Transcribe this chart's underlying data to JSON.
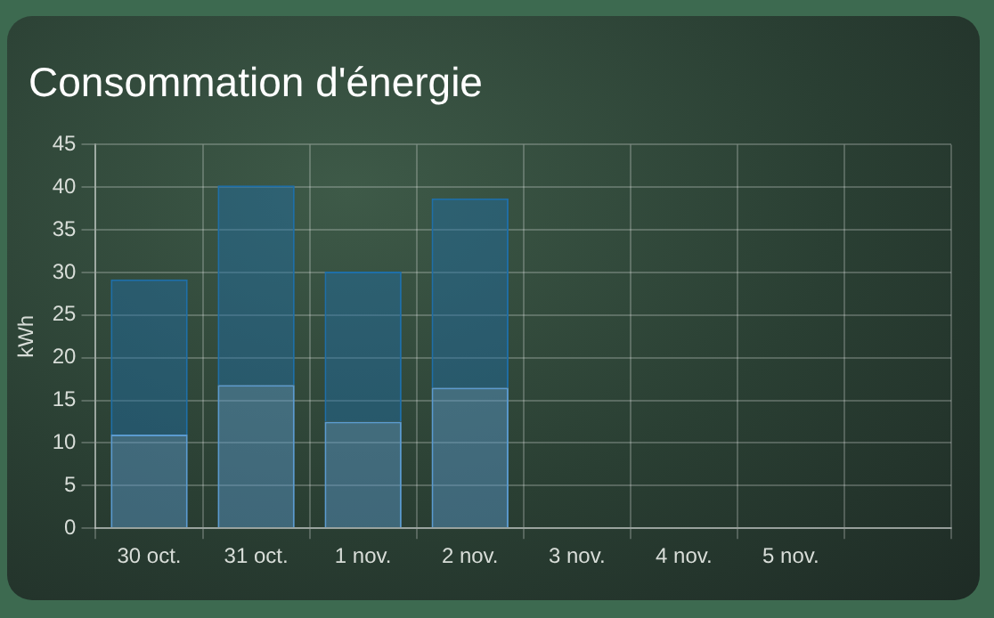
{
  "chart_data": {
    "type": "bar",
    "title": "Consommation d'énergie",
    "ylabel": "kWh",
    "categories": [
      "30 oct.",
      "31 oct.",
      "1 nov.",
      "2 nov.",
      "3 nov.",
      "4 nov.",
      "5 nov.",
      null
    ],
    "stacked": true,
    "series": [
      {
        "color": "#5b9bd0",
        "values": [
          11,
          16.8,
          12.5,
          16.5,
          null,
          null,
          null,
          null
        ]
      },
      {
        "color": "#1f6fa8",
        "values": [
          18.2,
          23.4,
          17.6,
          22.2,
          null,
          null,
          null,
          null
        ]
      }
    ],
    "ylim": [
      0,
      45
    ],
    "yticks": [
      0,
      5,
      10,
      15,
      20,
      25,
      30,
      35,
      40,
      45
    ],
    "grid": true,
    "legend": false
  }
}
